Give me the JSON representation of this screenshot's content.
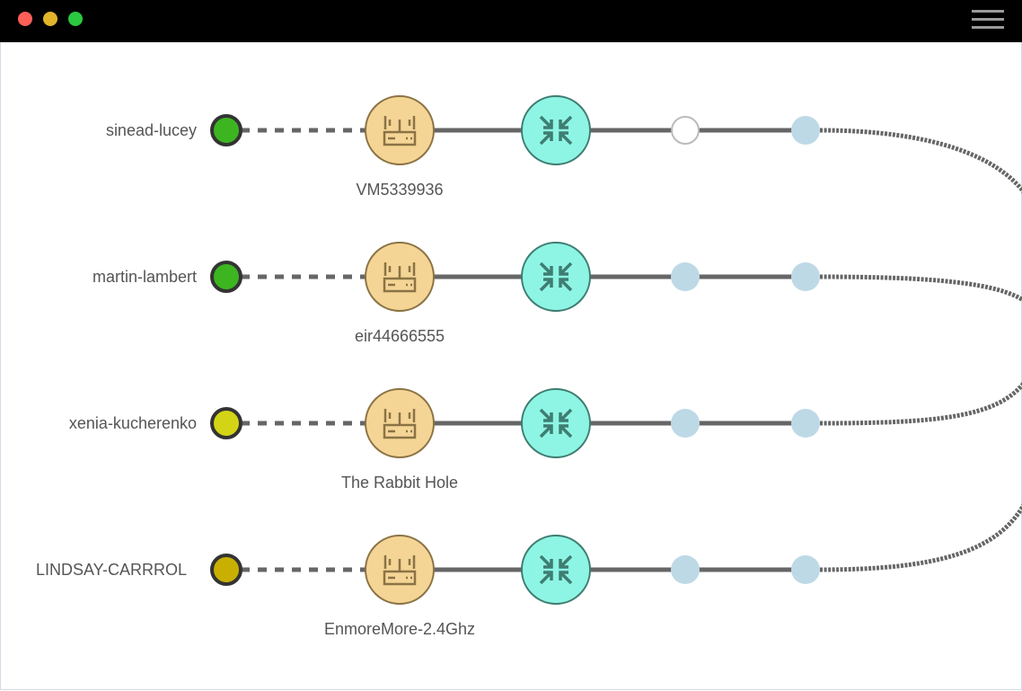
{
  "window": {
    "traffic_lights": {
      "close": "#fe5f57",
      "minimize": "#e2b42a",
      "maximize": "#2ac940"
    },
    "menu_icon": "hamburger-icon"
  },
  "colors": {
    "link": "#666666",
    "router_fill": "#f5d595",
    "router_stroke": "#8a7345",
    "switch_fill": "#8ef5e4",
    "switch_stroke": "#3f7d72",
    "hop_fill": "#bed9e6"
  },
  "rows": [
    {
      "client": "sinead-lucey",
      "status_color": "#3cb521",
      "router": "VM5339936",
      "hop1": "empty"
    },
    {
      "client": "martin-lambert",
      "status_color": "#3cb521",
      "router": "eir44666555",
      "hop1": "filled"
    },
    {
      "client": "xenia-kucherenko",
      "status_color": "#d4d416",
      "router": "The Rabbit Hole",
      "hop1": "filled"
    },
    {
      "client": "LINDSAY-CARRROL",
      "status_color": "#c9b000",
      "router": "EnmoreMore-2.4Ghz",
      "hop1": "filled"
    }
  ]
}
